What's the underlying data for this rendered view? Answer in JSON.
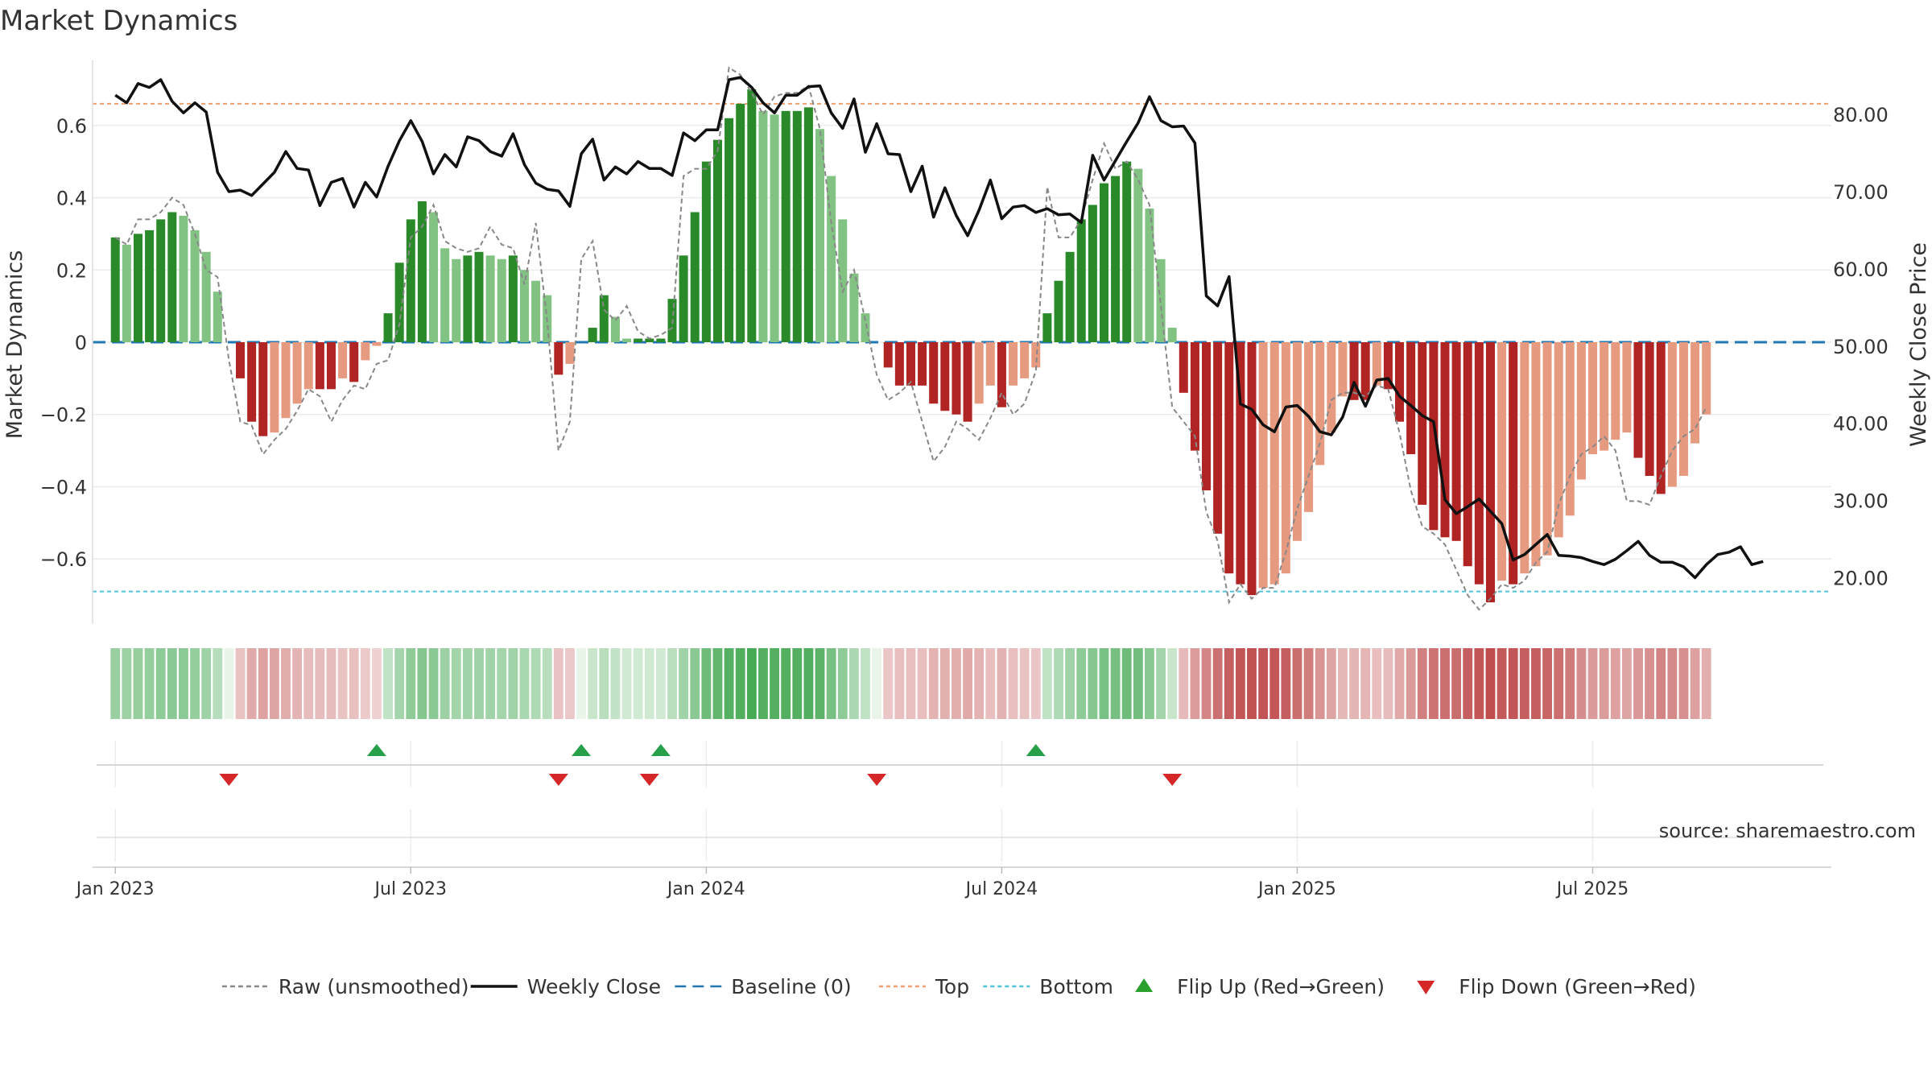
{
  "chart_data": {
    "type": "bar",
    "title": "Market Dynamics",
    "ylabel_left": "Market Dynamics",
    "ylabel_right": "Weekly Close Price",
    "ylim_left": [
      -0.78,
      0.78
    ],
    "ylim_right": [
      14,
      87
    ],
    "yticks_left": [
      0.6,
      0.4,
      0.2,
      0,
      -0.2,
      -0.4,
      -0.6
    ],
    "ytick_labels_left": [
      "0.6",
      "0.4",
      "0.2",
      "0",
      "−0.2",
      "−0.4",
      "−0.6"
    ],
    "yticks_right": [
      80,
      70,
      60,
      50,
      40,
      30,
      20
    ],
    "ytick_labels_right": [
      "80.00",
      "70.00",
      "60.00",
      "50.00",
      "40.00",
      "30.00",
      "20.00"
    ],
    "x_range_weeks": [
      -2,
      151
    ],
    "xticks": [
      0,
      26,
      52,
      78,
      104,
      130
    ],
    "xtick_labels": [
      "Jan 2023",
      "Jul 2023",
      "Jan 2024",
      "Jul 2024",
      "Jan 2025",
      "Jul 2025"
    ],
    "top_level": 0.66,
    "bottom_level": -0.69,
    "grid": true,
    "legend_placement": "bottom",
    "source": "source: sharemaestro.com",
    "legend": [
      {
        "label": "Raw (unsmoothed)",
        "kind": "dashline",
        "color": "#888888"
      },
      {
        "label": "Weekly Close",
        "kind": "line",
        "color": "#111111"
      },
      {
        "label": "Baseline (0)",
        "kind": "dashline",
        "color": "#1f77b4"
      },
      {
        "label": "Top",
        "kind": "dotline",
        "color": "#f0a070"
      },
      {
        "label": "Bottom",
        "kind": "dotline",
        "color": "#4fc3d9"
      },
      {
        "label": "Flip Up (Red→Green)",
        "kind": "tri-up",
        "color": "#2ca02c"
      },
      {
        "label": "Flip Down (Green→Red)",
        "kind": "tri-down",
        "color": "#d62728"
      }
    ],
    "flip_up_weeks": [
      23,
      41,
      48,
      81
    ],
    "flip_down_weeks": [
      10,
      39,
      47,
      67,
      93
    ],
    "colors": {
      "strong_green": "#2a8a2a",
      "light_green": "#82c282",
      "strong_red": "#b02424",
      "light_red": "#e69a80",
      "raw": "#888888",
      "close": "#111111",
      "baseline": "#1f77b4",
      "top": "#f0a070",
      "bottom": "#4fc3d9",
      "flip_up": "#27a04a",
      "flip_down": "#d62728"
    },
    "series": [
      {
        "name": "Market Dynamics",
        "values": [
          0.29,
          0.27,
          0.3,
          0.31,
          0.34,
          0.36,
          0.35,
          0.31,
          0.25,
          0.14,
          0,
          -0.1,
          -0.22,
          -0.26,
          -0.25,
          -0.21,
          -0.17,
          -0.13,
          -0.13,
          -0.13,
          -0.1,
          -0.11,
          -0.05,
          -0.01,
          0.08,
          0.22,
          0.34,
          0.39,
          0.36,
          0.26,
          0.23,
          0.24,
          0.25,
          0.24,
          0.23,
          0.24,
          0.2,
          0.17,
          0.13,
          -0.09,
          -0.06,
          0,
          0.04,
          0.13,
          0.07,
          0.01,
          0.01,
          0.01,
          0.01,
          0.12,
          0.24,
          0.36,
          0.5,
          0.56,
          0.62,
          0.66,
          0.7,
          0.64,
          0.63,
          0.64,
          0.64,
          0.65,
          0.59,
          0.46,
          0.34,
          0.19,
          0.08,
          0,
          -0.07,
          -0.12,
          -0.12,
          -0.12,
          -0.17,
          -0.19,
          -0.2,
          -0.22,
          -0.17,
          -0.12,
          -0.18,
          -0.12,
          -0.1,
          -0.07,
          0.08,
          0.17,
          0.25,
          0.34,
          0.38,
          0.44,
          0.46,
          0.5,
          0.48,
          0.37,
          0.23,
          0.04,
          -0.14,
          -0.3,
          -0.41,
          -0.53,
          -0.64,
          -0.67,
          -0.7,
          -0.68,
          -0.67,
          -0.64,
          -0.55,
          -0.47,
          -0.34,
          -0.25,
          -0.15,
          -0.16,
          -0.16,
          -0.12,
          -0.13,
          -0.22,
          -0.31,
          -0.45,
          -0.52,
          -0.54,
          -0.55,
          -0.62,
          -0.67,
          -0.72,
          -0.66,
          -0.67,
          -0.64,
          -0.62,
          -0.59,
          -0.54,
          -0.48,
          -0.38,
          -0.31,
          -0.3,
          -0.27,
          -0.25,
          -0.32,
          -0.37,
          -0.42,
          -0.4,
          -0.37,
          -0.28,
          -0.2
        ]
      },
      {
        "name": "Raw (unsmoothed)",
        "values": [
          0.29,
          0.27,
          0.34,
          0.34,
          0.36,
          0.4,
          0.38,
          0.3,
          0.2,
          0.18,
          -0.05,
          -0.22,
          -0.23,
          -0.31,
          -0.27,
          -0.24,
          -0.19,
          -0.13,
          -0.15,
          -0.22,
          -0.16,
          -0.12,
          -0.13,
          -0.06,
          -0.05,
          0.05,
          0.29,
          0.32,
          0.38,
          0.28,
          0.26,
          0.25,
          0.26,
          0.32,
          0.27,
          0.26,
          0.16,
          0.33,
          0.06,
          -0.3,
          -0.22,
          0.23,
          0.28,
          0.09,
          0.06,
          0.1,
          0.03,
          0.01,
          0.02,
          0.04,
          0.46,
          0.48,
          0.48,
          0.53,
          0.76,
          0.74,
          0.69,
          0.63,
          0.68,
          0.69,
          0.69,
          0.71,
          0.59,
          0.33,
          0.14,
          0.2,
          0.06,
          -0.09,
          -0.16,
          -0.14,
          -0.11,
          -0.22,
          -0.33,
          -0.29,
          -0.22,
          -0.24,
          -0.27,
          -0.21,
          -0.14,
          -0.2,
          -0.17,
          -0.08,
          0.43,
          0.29,
          0.29,
          0.34,
          0.45,
          0.55,
          0.48,
          0.5,
          0.45,
          0.38,
          0.1,
          -0.18,
          -0.22,
          -0.26,
          -0.47,
          -0.55,
          -0.72,
          -0.67,
          -0.71,
          -0.68,
          -0.68,
          -0.58,
          -0.46,
          -0.37,
          -0.28,
          -0.16,
          -0.14,
          -0.14,
          -0.15,
          -0.12,
          -0.13,
          -0.25,
          -0.41,
          -0.51,
          -0.53,
          -0.56,
          -0.63,
          -0.7,
          -0.74,
          -0.71,
          -0.67,
          -0.68,
          -0.66,
          -0.61,
          -0.58,
          -0.45,
          -0.37,
          -0.31,
          -0.29,
          -0.26,
          -0.3,
          -0.44,
          -0.44,
          -0.45,
          -0.37,
          -0.3,
          -0.26,
          -0.24,
          -0.18
        ]
      },
      {
        "name": "Weekly Close",
        "values": [
          82.5,
          81.5,
          84,
          83.5,
          84.5,
          81.7,
          80.2,
          81.5,
          80.3,
          72.5,
          70,
          70.2,
          69.5,
          71,
          72.5,
          75.2,
          73,
          72.8,
          68.2,
          71.2,
          71.7,
          68,
          71.2,
          69.3,
          73.3,
          76.6,
          79.2,
          76.5,
          72.3,
          74.8,
          73.2,
          77.1,
          76.6,
          75.2,
          74.6,
          77.5,
          73.5,
          71.1,
          70.3,
          70.1,
          68.1,
          74.9,
          76.8,
          71.5,
          73.2,
          72.3,
          73.9,
          73,
          73,
          72.1,
          77.6,
          76.6,
          78,
          78,
          84.5,
          84.8,
          83.5,
          81.5,
          80.2,
          82.5,
          82.5,
          83.6,
          83.7,
          80.2,
          78.2,
          82,
          75.1,
          78.8,
          74.9,
          74.8,
          70,
          73.3,
          66.7,
          70.5,
          66.9,
          64.3,
          67.6,
          71.5,
          66.5,
          68,
          68.2,
          67.3,
          67.8,
          67,
          67.1,
          66,
          74.7,
          71.5,
          74,
          76.5,
          78.9,
          82.3,
          79.2,
          78.4,
          78.5,
          76.3,
          56.5,
          55.2,
          59,
          42.5,
          41.8,
          39.8,
          38.9,
          42.1,
          42.3,
          40.9,
          38.9,
          38.5,
          40.8,
          45.3,
          42.2,
          45.6,
          45.8,
          43.5,
          42.3,
          41,
          40.2,
          30.1,
          28.3,
          29.2,
          30.2,
          28.6,
          27,
          22.3,
          23,
          24.3,
          25.6,
          22.9,
          22.8,
          22.6,
          22.1,
          21.7,
          22.4,
          23.5,
          24.7,
          22.9,
          22,
          22,
          21.4,
          20,
          21.7,
          23,
          23.3,
          24,
          21.7,
          22.1
        ]
      }
    ]
  }
}
